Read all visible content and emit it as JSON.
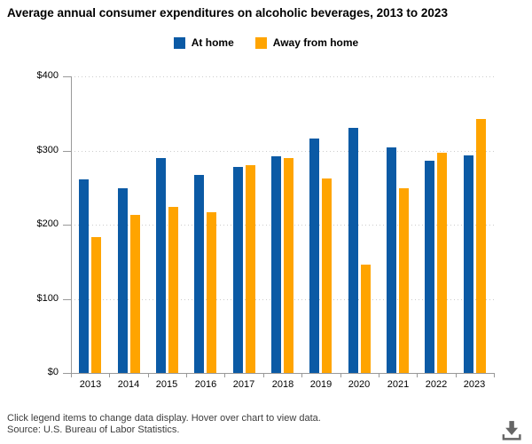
{
  "title": "Average annual consumer expenditures on alcoholic beverages, 2013 to 2023",
  "legend": {
    "items": [
      {
        "label": "At home",
        "color": "#0b5aa5"
      },
      {
        "label": "Away from home",
        "color": "#ffa400"
      }
    ]
  },
  "chart_data": {
    "type": "bar",
    "categories": [
      "2013",
      "2014",
      "2015",
      "2016",
      "2017",
      "2018",
      "2019",
      "2020",
      "2021",
      "2022",
      "2023"
    ],
    "series": [
      {
        "name": "At home",
        "color": "#0b5aa5",
        "values": [
          261,
          249,
          290,
          267,
          278,
          292,
          316,
          331,
          304,
          286,
          294
        ]
      },
      {
        "name": "Away from home",
        "color": "#ffa400",
        "values": [
          183,
          213,
          224,
          217,
          280,
          290,
          262,
          146,
          249,
          297,
          343
        ]
      }
    ],
    "title": "Average annual consumer expenditures on alcoholic beverages, 2013 to 2023",
    "xlabel": "",
    "ylabel": "",
    "ylim": [
      0,
      400
    ],
    "y_tick_interval": 100,
    "y_ticks": [
      "$0",
      "$100",
      "$200",
      "$300",
      "$400"
    ],
    "grid": "horizontal dotted",
    "legend_position": "top"
  },
  "footer": {
    "hint": "Click legend items to change data display. Hover over chart to view data.",
    "source": "Source: U.S. Bureau of Labor Statistics."
  },
  "colors": {
    "grid": "#cccccc",
    "axis": "#999999",
    "icon": "#666666",
    "footer_text": "#3c3c3c"
  }
}
